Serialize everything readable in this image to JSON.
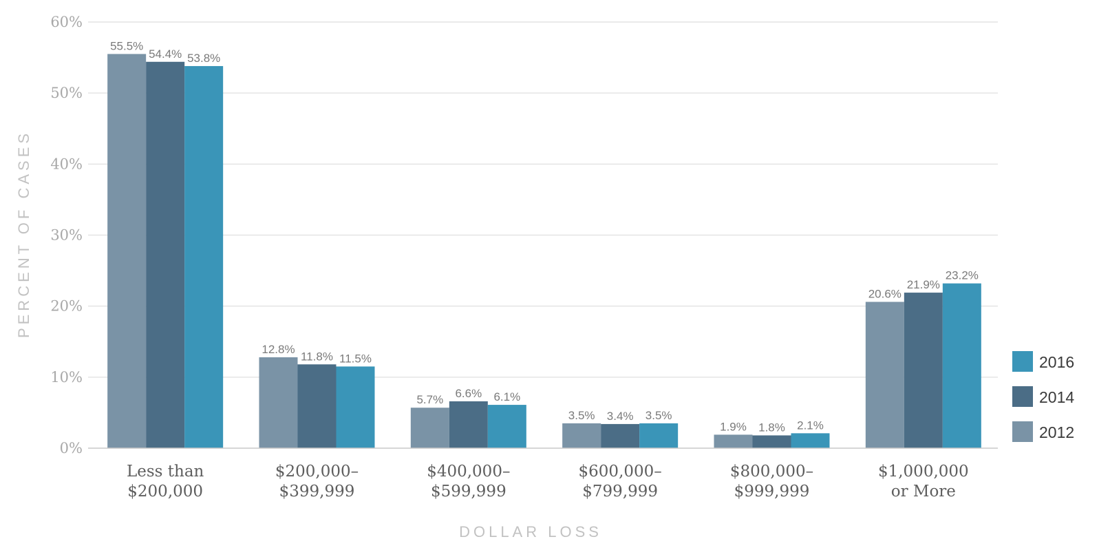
{
  "chart_data": {
    "type": "bar",
    "categories": [
      [
        "Less than",
        "$200,000"
      ],
      [
        "$200,000–",
        "$399,999"
      ],
      [
        "$400,000–",
        "$599,999"
      ],
      [
        "$600,000–",
        "$799,999"
      ],
      [
        "$800,000–",
        "$999,999"
      ],
      [
        "$1,000,000",
        "or More"
      ]
    ],
    "series": [
      {
        "name": "2012",
        "values": [
          55.5,
          12.8,
          5.7,
          3.5,
          1.9,
          20.6
        ],
        "labels": [
          "55.5%",
          "12.8%",
          "5.7%",
          "3.5%",
          "1.9%",
          "20.6%"
        ],
        "color": "#7a93a6"
      },
      {
        "name": "2014",
        "values": [
          54.4,
          11.8,
          6.6,
          3.4,
          1.8,
          21.9
        ],
        "labels": [
          "54.4%",
          "11.8%",
          "6.6%",
          "3.4%",
          "1.8%",
          "21.9%"
        ],
        "color": "#4b6d86"
      },
      {
        "name": "2016",
        "values": [
          53.8,
          11.5,
          6.1,
          3.5,
          2.1,
          23.2
        ],
        "labels": [
          "53.8%",
          "11.5%",
          "6.1%",
          "3.5%",
          "2.1%",
          "23.2%"
        ],
        "color": "#3a95b8"
      }
    ],
    "xlabel": "DOLLAR LOSS",
    "ylabel": "PERCENT OF CASES",
    "ylim": [
      0,
      60
    ],
    "yticks": [
      {
        "value": 0,
        "label": "0%"
      },
      {
        "value": 10,
        "label": "10%"
      },
      {
        "value": 20,
        "label": "20%"
      },
      {
        "value": 30,
        "label": "30%"
      },
      {
        "value": 40,
        "label": "40%"
      },
      {
        "value": 50,
        "label": "50%"
      },
      {
        "value": 60,
        "label": "60%"
      }
    ],
    "grid": true,
    "legend": {
      "position": "right",
      "order": [
        "2016",
        "2014",
        "2012"
      ]
    }
  }
}
